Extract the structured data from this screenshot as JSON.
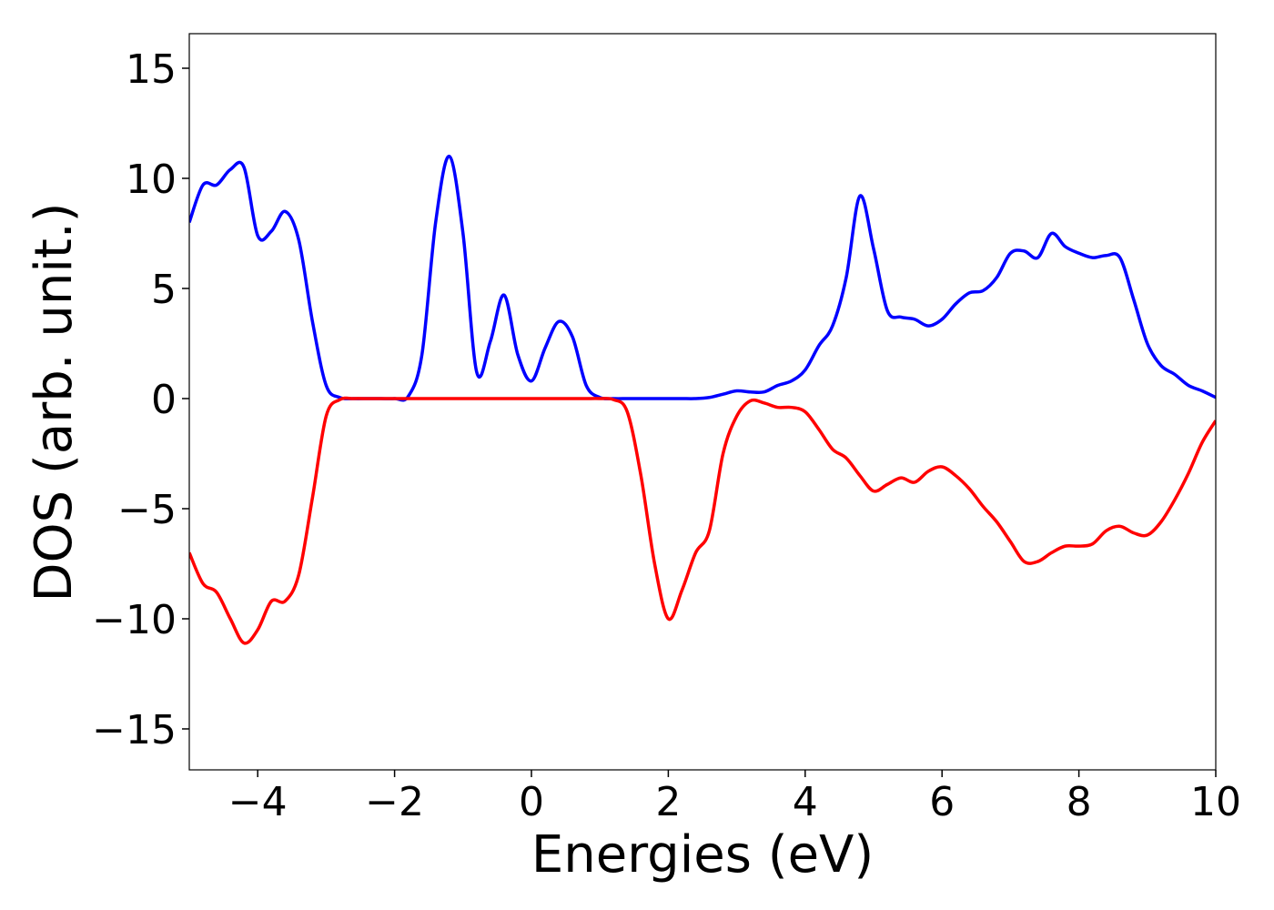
{
  "chart_data": {
    "type": "line",
    "xlabel": "Energies (eV)",
    "ylabel": "DOS (arb. unit.)",
    "x": [
      -5,
      -4.8,
      -4.6,
      -4.4,
      -4.2,
      -4,
      -3.8,
      -3.6,
      -3.4,
      -3.2,
      -3,
      -2.8,
      -2.6,
      -2.4,
      -2.2,
      -2,
      -1.8,
      -1.6,
      -1.4,
      -1.2,
      -1,
      -0.8,
      -0.6,
      -0.4,
      -0.2,
      0,
      0.2,
      0.4,
      0.6,
      0.8,
      1,
      1.2,
      1.4,
      1.6,
      1.8,
      2,
      2.2,
      2.4,
      2.6,
      2.8,
      3,
      3.2,
      3.4,
      3.6,
      3.8,
      4,
      4.2,
      4.4,
      4.6,
      4.8,
      5,
      5.2,
      5.4,
      5.6,
      5.8,
      6,
      6.2,
      6.4,
      6.6,
      6.8,
      7,
      7.2,
      7.4,
      7.6,
      7.8,
      8,
      8.2,
      8.4,
      8.6,
      8.8,
      9,
      9.2,
      9.4,
      9.6,
      9.8,
      10
    ],
    "series": [
      {
        "color": "#0000ff",
        "values": [
          8.0,
          9.7,
          9.7,
          10.4,
          10.5,
          7.4,
          7.6,
          8.5,
          7.2,
          3.5,
          0.6,
          0.05,
          0,
          0,
          0,
          0,
          0.1,
          2.0,
          8.0,
          11.0,
          7.5,
          1.2,
          2.6,
          4.7,
          2.0,
          0.8,
          2.3,
          3.5,
          2.8,
          0.6,
          0.05,
          0,
          0,
          0,
          0,
          0,
          0,
          0,
          0.05,
          0.2,
          0.35,
          0.3,
          0.3,
          0.6,
          0.8,
          1.3,
          2.4,
          3.3,
          5.5,
          9.2,
          6.8,
          4.0,
          3.7,
          3.6,
          3.3,
          3.6,
          4.3,
          4.8,
          4.9,
          5.5,
          6.6,
          6.7,
          6.4,
          7.5,
          6.9,
          6.6,
          6.4,
          6.5,
          6.4,
          4.5,
          2.5,
          1.5,
          1.1,
          0.6,
          0.35,
          0.05
        ]
      },
      {
        "color": "#ff0000",
        "values": [
          -7.0,
          -8.4,
          -8.8,
          -10.0,
          -11.1,
          -10.5,
          -9.2,
          -9.2,
          -8.0,
          -4.5,
          -0.8,
          -0.05,
          0,
          0,
          0,
          0,
          0,
          0,
          0,
          0,
          0,
          0,
          0,
          0,
          0,
          0,
          0,
          0,
          0,
          0,
          0,
          -0.05,
          -0.6,
          -3.5,
          -7.5,
          -10.0,
          -8.7,
          -7.0,
          -6.0,
          -2.5,
          -0.8,
          -0.1,
          -0.2,
          -0.4,
          -0.4,
          -0.6,
          -1.4,
          -2.3,
          -2.7,
          -3.5,
          -4.2,
          -3.9,
          -3.6,
          -3.8,
          -3.3,
          -3.1,
          -3.5,
          -4.1,
          -4.9,
          -5.6,
          -6.5,
          -7.4,
          -7.4,
          -7.0,
          -6.7,
          -6.7,
          -6.6,
          -6.0,
          -5.8,
          -6.1,
          -6.2,
          -5.6,
          -4.6,
          -3.4,
          -2.0,
          -1.0
        ]
      }
    ],
    "xlim": [
      -5,
      10
    ],
    "xticks": [
      {
        "value": -4,
        "label": "−4"
      },
      {
        "value": -2,
        "label": "−2"
      },
      0,
      2,
      4,
      6,
      8,
      10
    ],
    "ylim": [
      -16.86,
      16.57
    ],
    "yticks": [
      {
        "value": -15,
        "label": "−15"
      },
      {
        "value": -10,
        "label": "−10"
      },
      {
        "value": -5,
        "label": "−5"
      },
      0,
      5,
      10,
      15
    ],
    "grid": false
  }
}
